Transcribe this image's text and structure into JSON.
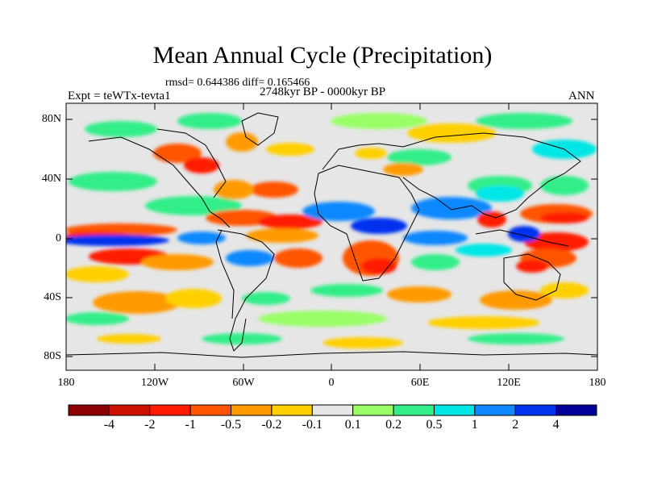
{
  "title": "Mean Annual Cycle (Precipitation)",
  "stats_line": "rmsd= 0.644386 diff= 0.165466",
  "period_line": "2748kyr BP - 0000kyr BP",
  "experiment_label": "Expt = teWTx-tevta1",
  "season_label": "ANN",
  "map": {
    "lat_ticks": [
      "80N",
      "40N",
      "0",
      "40S",
      "80S"
    ],
    "lon_ticks": [
      "180",
      "120W",
      "60W",
      "0",
      "60E",
      "120E",
      "180"
    ],
    "colors": {
      "neutral": "#e6e6e6",
      "coast": "#000000"
    }
  },
  "colorbar": {
    "levels": [
      "-4",
      "-2",
      "-1",
      "-0.5",
      "-0.2",
      "-0.1",
      "0.1",
      "0.2",
      "0.5",
      "1",
      "2",
      "4"
    ],
    "colors": [
      "#8b0000",
      "#cc1100",
      "#ff1a00",
      "#ff5500",
      "#ff9a00",
      "#ffd000",
      "#e6e6e6",
      "#99ff66",
      "#33ee88",
      "#00e6e6",
      "#1188ff",
      "#0033ee",
      "#000099"
    ]
  }
}
